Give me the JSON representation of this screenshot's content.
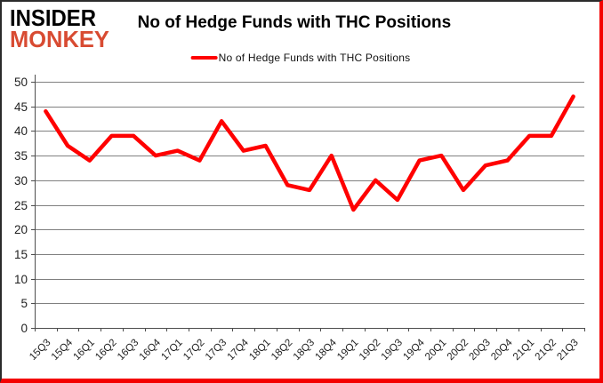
{
  "logo": {
    "line1": "INSIDER",
    "line2": "MONKEY",
    "line1_color": "#000000",
    "line2_color": "#d84b32"
  },
  "header": {
    "title": "No of Hedge Funds with THC Positions"
  },
  "legend": {
    "label": "No of Hedge Funds with THC Positions",
    "line_color": "#ff0000"
  },
  "chart_data": {
    "type": "line",
    "title": "No of Hedge Funds with THC Positions",
    "categories": [
      "15Q3",
      "15Q4",
      "16Q1",
      "16Q2",
      "16Q3",
      "16Q4",
      "17Q1",
      "17Q2",
      "17Q3",
      "17Q4",
      "18Q1",
      "18Q2",
      "18Q3",
      "18Q4",
      "19Q1",
      "19Q2",
      "19Q3",
      "19Q4",
      "20Q1",
      "20Q2",
      "20Q3",
      "20Q4",
      "21Q1",
      "21Q2",
      "21Q3"
    ],
    "series": [
      {
        "name": "No of Hedge Funds with THC Positions",
        "color": "#ff0000",
        "values": [
          44,
          37,
          34,
          39,
          39,
          35,
          36,
          34,
          42,
          36,
          37,
          29,
          28,
          35,
          24,
          30,
          26,
          34,
          35,
          28,
          33,
          34,
          39,
          39,
          47
        ]
      }
    ],
    "xlabel": "",
    "ylabel": "",
    "ylim": [
      0,
      50
    ],
    "ytick_interval": 5,
    "yticks": [
      0,
      5,
      10,
      15,
      20,
      25,
      30,
      35,
      40,
      45,
      50
    ],
    "grid": true,
    "legend_position": "top"
  },
  "style": {
    "gridline_color": "#808080",
    "axis_color": "#4d4d4d",
    "tick_label_color": "#1f1f1f",
    "background": "#ffffff"
  }
}
